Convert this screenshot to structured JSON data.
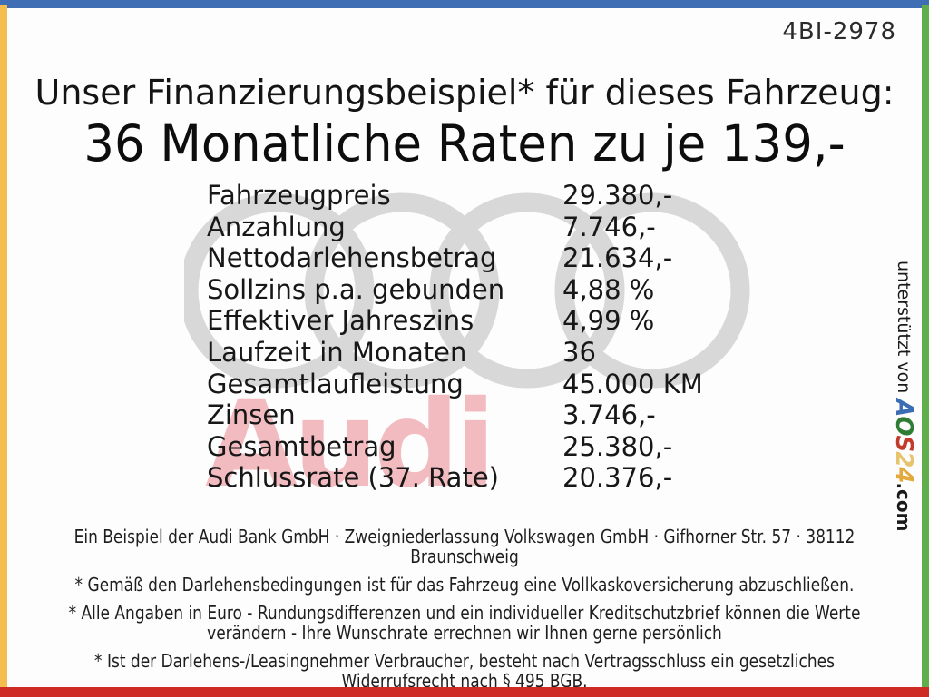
{
  "frame": {
    "top_color": "#3f6eb5",
    "left_color": "#f5bd4e",
    "right_color": "#5fae4b",
    "bottom_color": "#cd2b23"
  },
  "header": {
    "vehicle_code": "4BI-2978",
    "title": "Unser Finanzierungsbeispiel* für dieses Fahrzeug:",
    "subtitle": "36 Monatliche Raten zu je 139,-"
  },
  "financing_table": {
    "rows": [
      {
        "label": "Fahrzeugpreis",
        "value": "29.380,-"
      },
      {
        "label": "Anzahlung",
        "value": "7.746,-"
      },
      {
        "label": "Nettodarlehensbetrag",
        "value": "21.634,-"
      },
      {
        "label": "Sollzins p.a. gebunden",
        "value": "4,88 %"
      },
      {
        "label": "Effektiver Jahreszins",
        "value": "4,99 %"
      },
      {
        "label": "Laufzeit in Monaten",
        "value": "36"
      },
      {
        "label": "Gesamtlaufleistung",
        "value": "45.000 KM"
      },
      {
        "label": "Zinsen",
        "value": "3.746,-"
      },
      {
        "label": "Gesamtbetrag",
        "value": "25.380,-"
      },
      {
        "label": "Schlussrate (37. Rate)",
        "value": "20.376,-"
      }
    ]
  },
  "watermarks": {
    "audi_wordmark": "Audi",
    "wordmark_color": "#f2bbc0",
    "rings_color": "#d8d8d8"
  },
  "support_banner": {
    "prefix": "unterstützt von ",
    "logo_letters": [
      {
        "char": "A",
        "color": "#3b6db4"
      },
      {
        "char": "O",
        "color": "#2e7d33"
      },
      {
        "char": "S",
        "color": "#c23b2a"
      },
      {
        "char": "2",
        "color": "#e6c46c"
      },
      {
        "char": "4",
        "color": "#e3a93c"
      }
    ],
    "suffix": ".com"
  },
  "footer": {
    "paragraphs": [
      {
        "lines": [
          "Ein Beispiel der Audi Bank GmbH · Zweigniederlassung Volkswagen GmbH · Gifhorner Str. 57 · 38112",
          "Braunschweig"
        ]
      },
      {
        "lines": [
          "* Gemäß den Darlehensbedingungen ist für das Fahrzeug eine Vollkaskoversicherung abzuschließen."
        ]
      },
      {
        "lines": [
          "* Alle Angaben in Euro - Rundungsdifferenzen und ein individueller Kreditschutzbrief können die Werte",
          "verändern - Ihre Wunschrate errechnen wir Ihnen gerne persönlich"
        ]
      },
      {
        "lines": [
          "* Ist der Darlehens-/Leasingnehmer Verbraucher, besteht nach Vertragsschluss ein gesetzliches",
          "Widerrufsrecht nach § 495 BGB."
        ]
      }
    ]
  }
}
